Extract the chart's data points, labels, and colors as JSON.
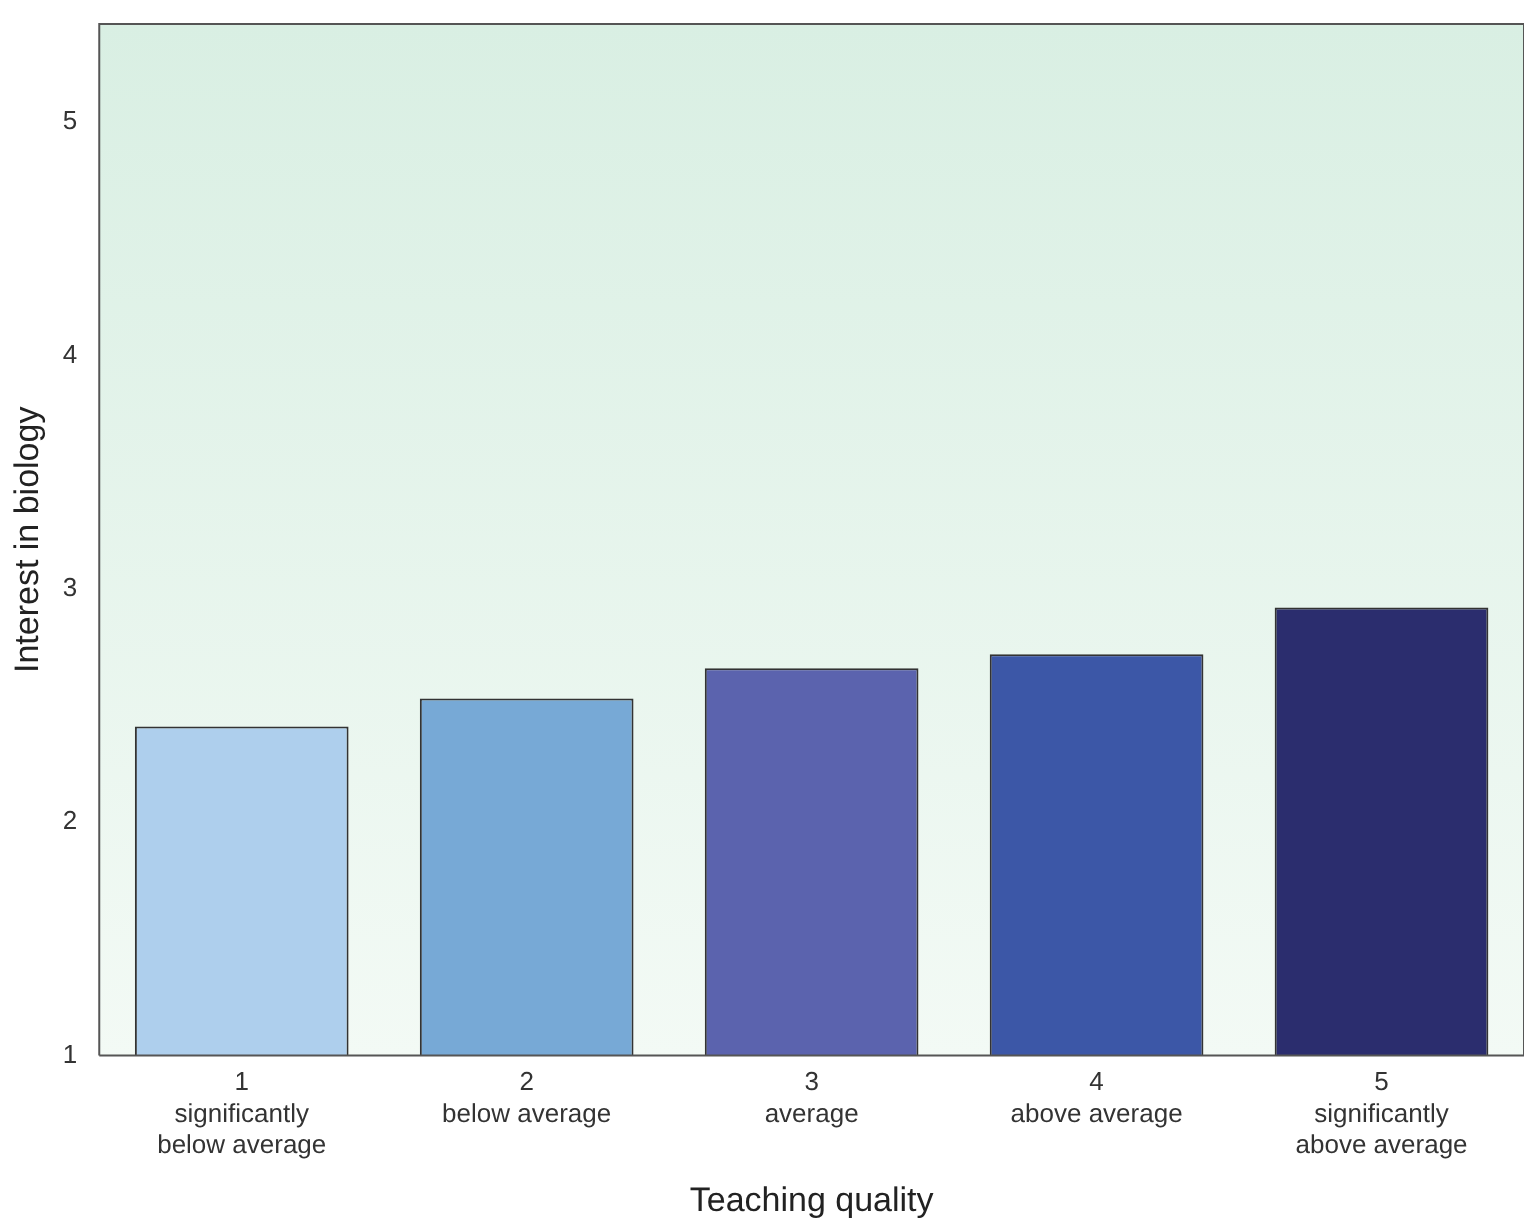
{
  "chart_data": {
    "type": "bar",
    "xlabel": "Teaching quality",
    "ylabel": "Interest in biology",
    "categories": [
      "1\nsignificantly\nbelow average",
      "2\nbelow average",
      "3\naverage",
      "4\nabove average",
      "5\nsignificantly\nabove average"
    ],
    "values": [
      2.41,
      2.53,
      2.66,
      2.72,
      2.92
    ],
    "colors": [
      "#aecfed",
      "#77a9d6",
      "#5b63ae",
      "#3c57a7",
      "#2b2d6e"
    ],
    "ylim": [
      1,
      5.42
    ],
    "yticks": [
      1,
      2,
      3,
      4,
      5
    ],
    "grid": false,
    "legend": false
  }
}
